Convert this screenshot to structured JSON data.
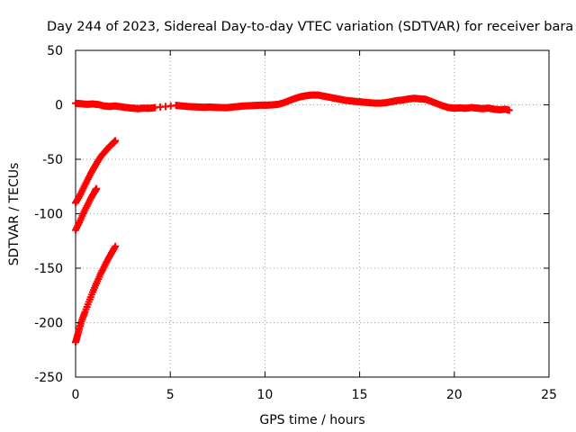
{
  "chart_data": {
    "type": "scatter",
    "title": "Day 244 of 2023, Sidereal Day-to-day VTEC variation (SDTVAR) for receiver bara",
    "xlabel": "GPS time / hours",
    "ylabel": "SDTVAR / TECUs",
    "xlim": [
      0,
      25
    ],
    "ylim": [
      -250,
      50
    ],
    "xticks": [
      "0",
      "5",
      "10",
      "15",
      "20",
      "25"
    ],
    "yticks": [
      "50",
      "0",
      "-50",
      "-100",
      "-150",
      "-200",
      "-250"
    ],
    "grid": true,
    "marker": "+",
    "color": "#ff0000",
    "series": [
      {
        "name": "main",
        "points": [
          [
            0.0,
            1.5
          ],
          [
            0.3,
            1.0
          ],
          [
            0.6,
            0.5
          ],
          [
            0.9,
            0.8
          ],
          [
            1.2,
            0.3
          ],
          [
            1.5,
            -1.0
          ],
          [
            1.8,
            -1.5
          ],
          [
            2.1,
            -1.0
          ],
          [
            2.4,
            -1.8
          ],
          [
            2.7,
            -2.5
          ],
          [
            3.0,
            -3.0
          ],
          [
            3.3,
            -3.5
          ],
          [
            3.6,
            -3.0
          ],
          [
            3.9,
            -3.2
          ],
          [
            4.2,
            -2.5
          ],
          [
            5.3,
            -0.5
          ],
          [
            5.6,
            -1.0
          ],
          [
            5.9,
            -1.5
          ],
          [
            6.2,
            -1.8
          ],
          [
            6.5,
            -2.0
          ],
          [
            6.8,
            -2.2
          ],
          [
            7.1,
            -2.0
          ],
          [
            7.4,
            -2.3
          ],
          [
            7.7,
            -2.5
          ],
          [
            8.0,
            -2.6
          ],
          [
            8.3,
            -2.0
          ],
          [
            8.6,
            -1.5
          ],
          [
            8.9,
            -1.0
          ],
          [
            9.2,
            -0.8
          ],
          [
            9.5,
            -0.5
          ],
          [
            9.8,
            -0.3
          ],
          [
            10.1,
            -0.3
          ],
          [
            10.4,
            0.0
          ],
          [
            10.7,
            0.5
          ],
          [
            11.0,
            2.0
          ],
          [
            11.3,
            4.0
          ],
          [
            11.6,
            6.0
          ],
          [
            11.9,
            7.5
          ],
          [
            12.2,
            8.5
          ],
          [
            12.5,
            9.0
          ],
          [
            12.8,
            9.0
          ],
          [
            13.1,
            8.0
          ],
          [
            13.4,
            7.0
          ],
          [
            13.7,
            6.0
          ],
          [
            14.0,
            5.0
          ],
          [
            14.3,
            4.0
          ],
          [
            14.6,
            3.5
          ],
          [
            14.9,
            3.0
          ],
          [
            15.2,
            2.5
          ],
          [
            15.5,
            2.0
          ],
          [
            15.8,
            1.5
          ],
          [
            16.1,
            1.5
          ],
          [
            16.4,
            2.0
          ],
          [
            16.7,
            3.0
          ],
          [
            17.0,
            4.0
          ],
          [
            17.3,
            4.5
          ],
          [
            17.6,
            5.5
          ],
          [
            17.9,
            6.0
          ],
          [
            18.2,
            5.5
          ],
          [
            18.5,
            5.0
          ],
          [
            18.8,
            3.0
          ],
          [
            19.1,
            1.0
          ],
          [
            19.4,
            -1.0
          ],
          [
            19.7,
            -2.5
          ],
          [
            20.0,
            -3.0
          ],
          [
            20.3,
            -2.8
          ],
          [
            20.6,
            -3.2
          ],
          [
            20.9,
            -2.5
          ],
          [
            21.2,
            -3.0
          ],
          [
            21.5,
            -3.5
          ],
          [
            21.8,
            -3.0
          ],
          [
            22.1,
            -4.0
          ],
          [
            22.4,
            -4.5
          ],
          [
            22.7,
            -4.0
          ],
          [
            22.9,
            -5.0
          ]
        ]
      },
      {
        "name": "arc-upper",
        "points": [
          [
            0.0,
            -90
          ],
          [
            0.2,
            -84
          ],
          [
            0.4,
            -77
          ],
          [
            0.6,
            -70
          ],
          [
            0.8,
            -63
          ],
          [
            1.0,
            -57
          ],
          [
            1.2,
            -51
          ],
          [
            1.4,
            -46
          ],
          [
            1.6,
            -42
          ],
          [
            1.8,
            -38
          ],
          [
            2.0,
            -35
          ],
          [
            2.1,
            -33
          ]
        ]
      },
      {
        "name": "arc-middle",
        "points": [
          [
            0.0,
            -115
          ],
          [
            0.2,
            -108
          ],
          [
            0.4,
            -100
          ],
          [
            0.6,
            -93
          ],
          [
            0.8,
            -86
          ],
          [
            1.0,
            -80
          ],
          [
            1.1,
            -77
          ]
        ]
      },
      {
        "name": "arc-lower",
        "points": [
          [
            0.0,
            -218
          ],
          [
            0.1,
            -212
          ],
          [
            0.2,
            -205
          ],
          [
            0.35,
            -197
          ],
          [
            0.5,
            -190
          ],
          [
            0.7,
            -181
          ],
          [
            0.9,
            -172
          ],
          [
            1.1,
            -164
          ],
          [
            1.3,
            -156
          ],
          [
            1.5,
            -149
          ],
          [
            1.7,
            -142
          ],
          [
            1.9,
            -136
          ],
          [
            2.1,
            -130
          ]
        ]
      }
    ]
  }
}
